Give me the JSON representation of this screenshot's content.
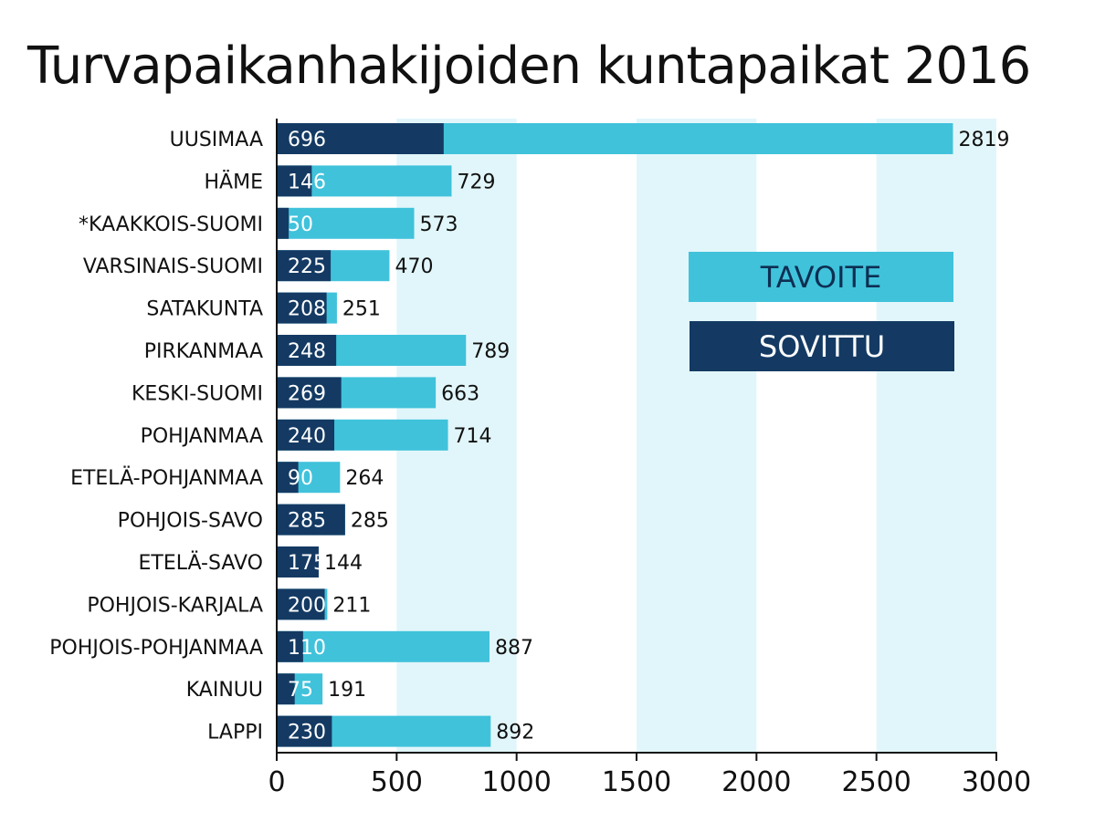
{
  "title": "Turvapaikanhakijoiden kuntapaikat 2016",
  "legend": {
    "tavoite": "TAVOITE",
    "sovittu": "SOVITTU"
  },
  "colors": {
    "tavoite": "#40c2db",
    "sovittu": "#143a63",
    "band": "#e1f6fa"
  },
  "chart_data": {
    "type": "bar",
    "orientation": "horizontal",
    "title": "Turvapaikanhakijoiden kuntapaikat 2016",
    "xlim": [
      0,
      3000
    ],
    "xticks": [
      0,
      500,
      1000,
      1500,
      2000,
      2500,
      3000
    ],
    "shaded_bands": [
      [
        500,
        1000
      ],
      [
        1500,
        2000
      ],
      [
        2500,
        3000
      ]
    ],
    "categories": [
      "UUSIMAA",
      "HÄME",
      "*KAAKKOIS-SUOMI",
      "VARSINAIS-SUOMI",
      "SATAKUNTA",
      "PIRKANMAA",
      "KESKI-SUOMI",
      "POHJANMAA",
      "ETELÄ-POHJANMAA",
      "POHJOIS-SAVO",
      "ETELÄ-SAVO",
      "POHJOIS-KARJALA",
      "POHJOIS-POHJANMAA",
      "KAINUU",
      "LAPPI"
    ],
    "series": [
      {
        "name": "TAVOITE",
        "values": [
          2819,
          729,
          573,
          470,
          251,
          789,
          663,
          714,
          264,
          285,
          144,
          211,
          887,
          191,
          892
        ]
      },
      {
        "name": "SOVITTU",
        "values": [
          696,
          146,
          50,
          225,
          208,
          248,
          269,
          240,
          90,
          285,
          175,
          200,
          110,
          75,
          230
        ]
      }
    ],
    "legend_position": "right"
  }
}
